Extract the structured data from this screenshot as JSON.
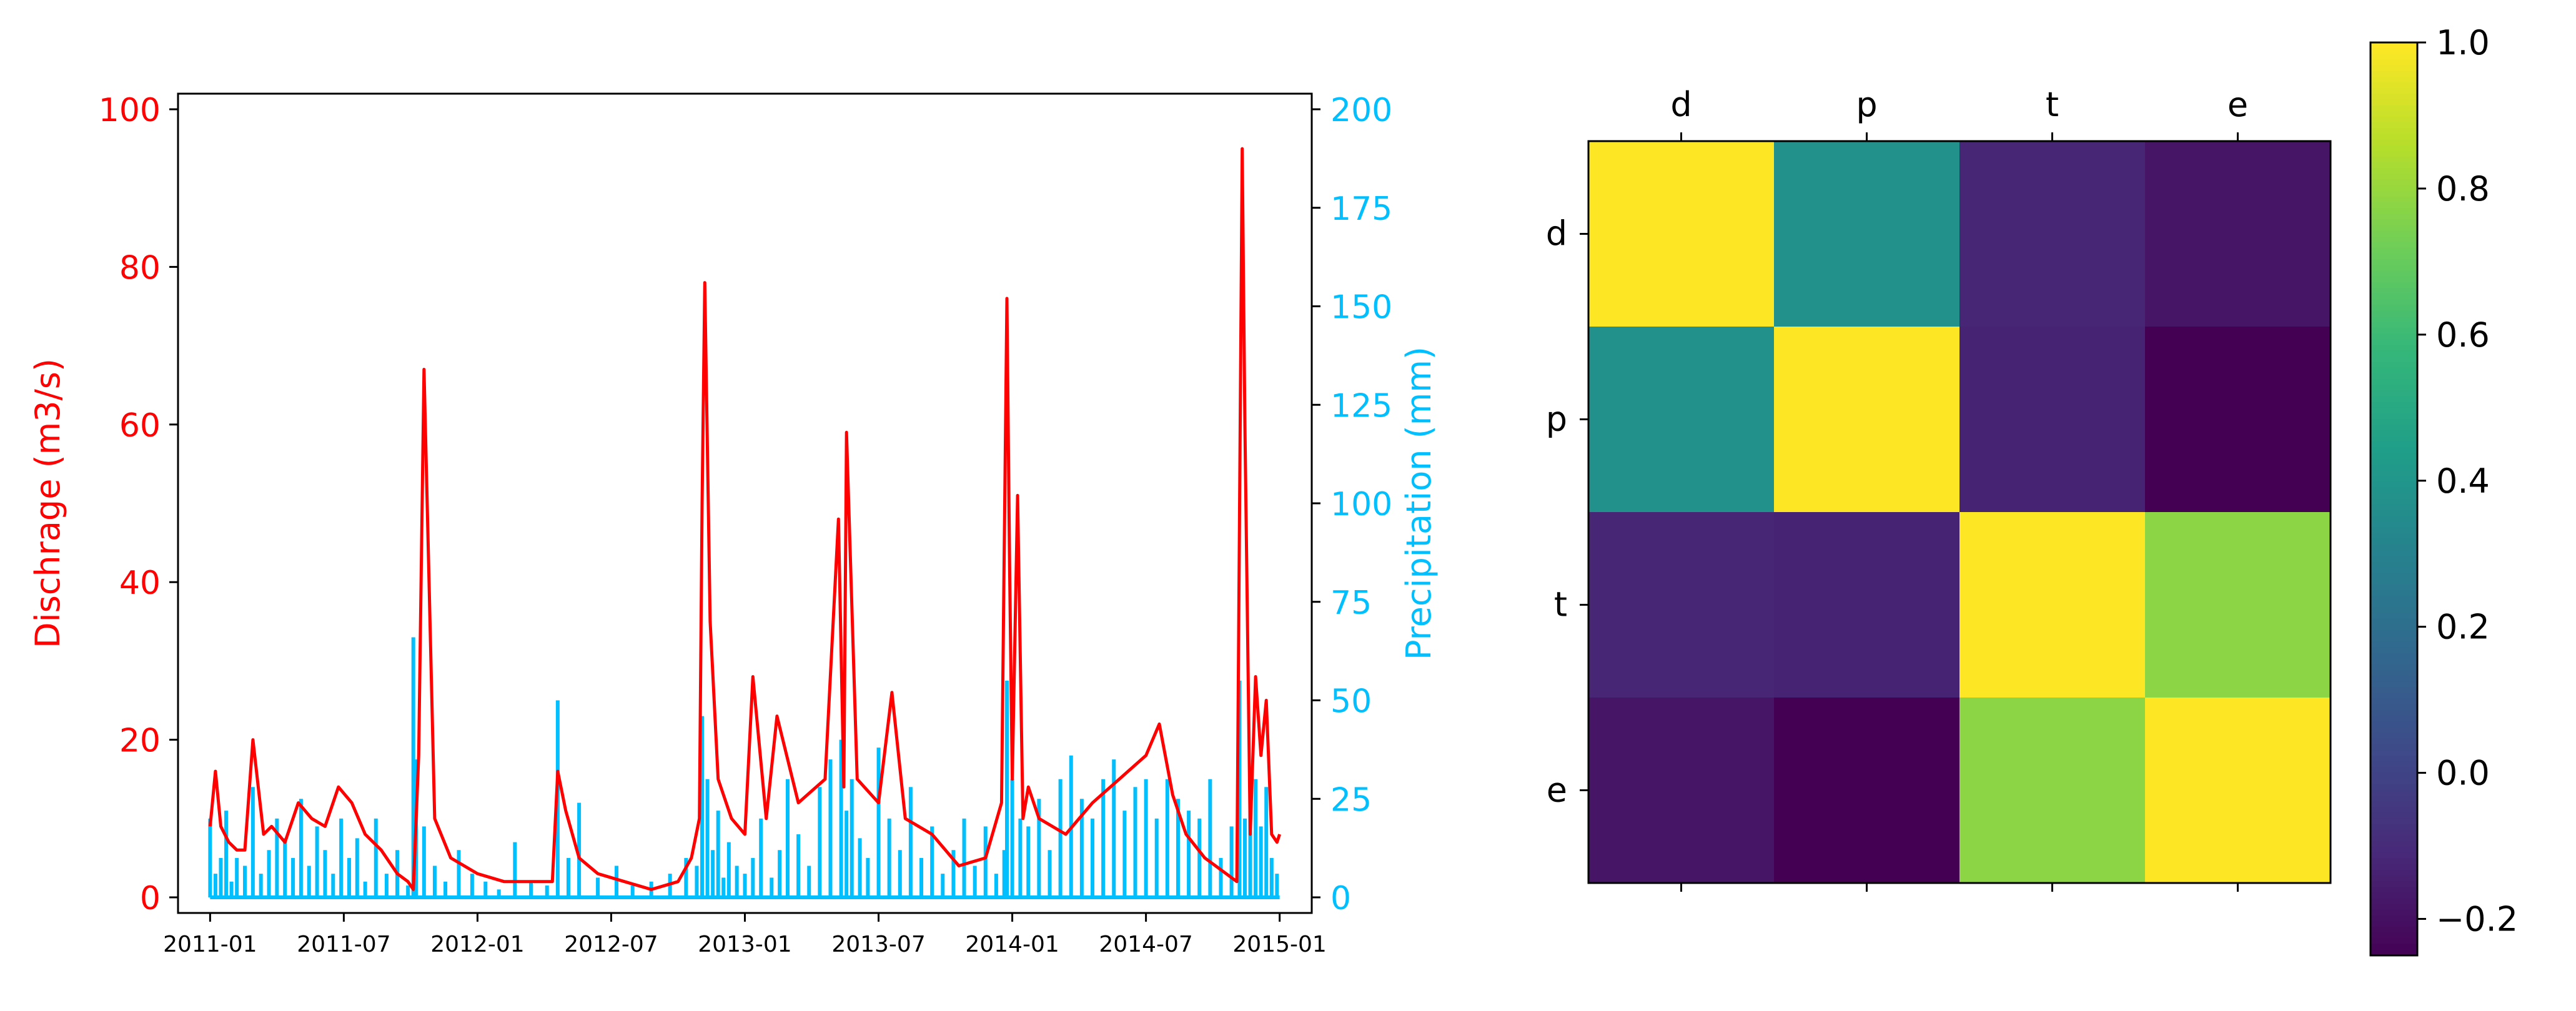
{
  "chart_data": [
    {
      "type": "line",
      "subtype": "dual-axis line with precipitation bars",
      "x_tick_labels": [
        "2011-01",
        "2011-07",
        "2012-01",
        "2012-07",
        "2013-01",
        "2013-07",
        "2014-01",
        "2014-07",
        "2015-01"
      ],
      "x_range": [
        "2011-01",
        "2015-01"
      ],
      "ylabel_left": "Dischrage (m3/s)",
      "ylabel_right": "Precipitation (mm)",
      "ylim_left": [
        0,
        100
      ],
      "ylim_right": [
        0,
        200
      ],
      "left_ticks": [
        0,
        20,
        40,
        60,
        80,
        100
      ],
      "right_ticks": [
        0,
        25,
        50,
        75,
        100,
        125,
        150,
        175,
        200
      ],
      "colors": {
        "discharge": "#ff0000",
        "precipitation": "#00bfff"
      },
      "series": [
        {
          "name": "Discharge",
          "axis": "left",
          "x_years": [
            2011.0,
            2011.02,
            2011.04,
            2011.07,
            2011.1,
            2011.13,
            2011.16,
            2011.2,
            2011.23,
            2011.28,
            2011.33,
            2011.38,
            2011.43,
            2011.48,
            2011.53,
            2011.58,
            2011.64,
            2011.7,
            2011.74,
            2011.76,
            2011.78,
            2011.8,
            2011.84,
            2011.9,
            2012.0,
            2012.1,
            2012.2,
            2012.28,
            2012.3,
            2012.33,
            2012.38,
            2012.45,
            2012.55,
            2012.65,
            2012.75,
            2012.8,
            2012.83,
            2012.84,
            2012.85,
            2012.87,
            2012.9,
            2012.95,
            2013.0,
            2013.03,
            2013.08,
            2013.12,
            2013.2,
            2013.3,
            2013.35,
            2013.37,
            2013.38,
            2013.42,
            2013.5,
            2013.55,
            2013.6,
            2013.7,
            2013.8,
            2013.9,
            2013.96,
            2013.98,
            2013.99,
            2014.0,
            2014.02,
            2014.04,
            2014.06,
            2014.1,
            2014.2,
            2014.3,
            2014.4,
            2014.5,
            2014.55,
            2014.6,
            2014.65,
            2014.72,
            2014.8,
            2014.84,
            2014.86,
            2014.87,
            2014.89,
            2014.91,
            2014.93,
            2014.95,
            2014.97,
            2014.99,
            2015.0
          ],
          "values": [
            9,
            16,
            9,
            7,
            6,
            6,
            20,
            8,
            9,
            7,
            12,
            10,
            9,
            14,
            12,
            8,
            6,
            3,
            2,
            1,
            18,
            67,
            10,
            5,
            3,
            2,
            2,
            2,
            16,
            11,
            5,
            3,
            2,
            1,
            2,
            5,
            10,
            50,
            78,
            35,
            15,
            10,
            8,
            28,
            10,
            23,
            12,
            15,
            48,
            14,
            59,
            15,
            12,
            26,
            10,
            8,
            4,
            5,
            12,
            76,
            42,
            15,
            51,
            10,
            14,
            10,
            8,
            12,
            15,
            18,
            22,
            13,
            8,
            5,
            3,
            2,
            95,
            60,
            8,
            28,
            18,
            25,
            8,
            7,
            8
          ]
        },
        {
          "name": "Precipitation",
          "axis": "right",
          "x_years": [
            2011.0,
            2011.02,
            2011.04,
            2011.06,
            2011.08,
            2011.1,
            2011.13,
            2011.16,
            2011.19,
            2011.22,
            2011.25,
            2011.28,
            2011.31,
            2011.34,
            2011.37,
            2011.4,
            2011.43,
            2011.46,
            2011.49,
            2011.52,
            2011.55,
            2011.58,
            2011.62,
            2011.66,
            2011.7,
            2011.74,
            2011.76,
            2011.77,
            2011.8,
            2011.84,
            2011.88,
            2011.93,
            2011.98,
            2012.03,
            2012.08,
            2012.14,
            2012.2,
            2012.26,
            2012.3,
            2012.34,
            2012.38,
            2012.45,
            2012.52,
            2012.58,
            2012.65,
            2012.72,
            2012.78,
            2012.82,
            2012.84,
            2012.86,
            2012.88,
            2012.9,
            2012.92,
            2012.94,
            2012.97,
            2013.0,
            2013.03,
            2013.06,
            2013.1,
            2013.13,
            2013.16,
            2013.2,
            2013.24,
            2013.28,
            2013.32,
            2013.36,
            2013.38,
            2013.4,
            2013.43,
            2013.46,
            2013.5,
            2013.54,
            2013.58,
            2013.62,
            2013.66,
            2013.7,
            2013.74,
            2013.78,
            2013.82,
            2013.86,
            2013.9,
            2013.94,
            2013.97,
            2013.98,
            2014.0,
            2014.03,
            2014.06,
            2014.1,
            2014.14,
            2014.18,
            2014.22,
            2014.26,
            2014.3,
            2014.34,
            2014.38,
            2014.42,
            2014.46,
            2014.5,
            2014.54,
            2014.58,
            2014.62,
            2014.66,
            2014.7,
            2014.74,
            2014.78,
            2014.82,
            2014.85,
            2014.87,
            2014.89,
            2014.91,
            2014.93,
            2014.95,
            2014.97,
            2014.99
          ],
          "values": [
            20,
            6,
            10,
            22,
            4,
            10,
            8,
            28,
            6,
            12,
            20,
            15,
            10,
            25,
            8,
            18,
            12,
            6,
            20,
            10,
            15,
            4,
            20,
            6,
            12,
            3,
            66,
            35,
            18,
            8,
            4,
            12,
            6,
            4,
            2,
            14,
            4,
            3,
            50,
            10,
            24,
            5,
            8,
            3,
            4,
            6,
            10,
            8,
            46,
            30,
            12,
            22,
            5,
            14,
            8,
            6,
            10,
            20,
            5,
            12,
            30,
            16,
            8,
            28,
            35,
            40,
            22,
            30,
            15,
            10,
            38,
            20,
            12,
            28,
            10,
            18,
            6,
            12,
            20,
            8,
            18,
            6,
            12,
            55,
            30,
            20,
            18,
            25,
            12,
            30,
            36,
            25,
            20,
            30,
            35,
            22,
            28,
            30,
            20,
            30,
            25,
            22,
            20,
            30,
            10,
            18,
            55,
            20,
            24,
            30,
            18,
            28,
            10,
            6
          ]
        }
      ]
    },
    {
      "type": "heatmap",
      "labels": [
        "d",
        "p",
        "t",
        "e"
      ],
      "matrix": [
        [
          1.0,
          0.38,
          -0.12,
          -0.18
        ],
        [
          0.38,
          1.0,
          -0.13,
          -0.25
        ],
        [
          -0.12,
          -0.13,
          1.0,
          0.78
        ],
        [
          -0.18,
          -0.25,
          0.78,
          1.0
        ]
      ],
      "colorbar": {
        "min": -0.25,
        "max": 1.0,
        "ticks": [
          -0.2,
          0.0,
          0.2,
          0.4,
          0.6,
          0.8,
          1.0
        ],
        "tick_labels": [
          "−0.2",
          "0.0",
          "0.2",
          "0.4",
          "0.6",
          "0.8",
          "1.0"
        ],
        "colormap": "viridis"
      }
    }
  ]
}
